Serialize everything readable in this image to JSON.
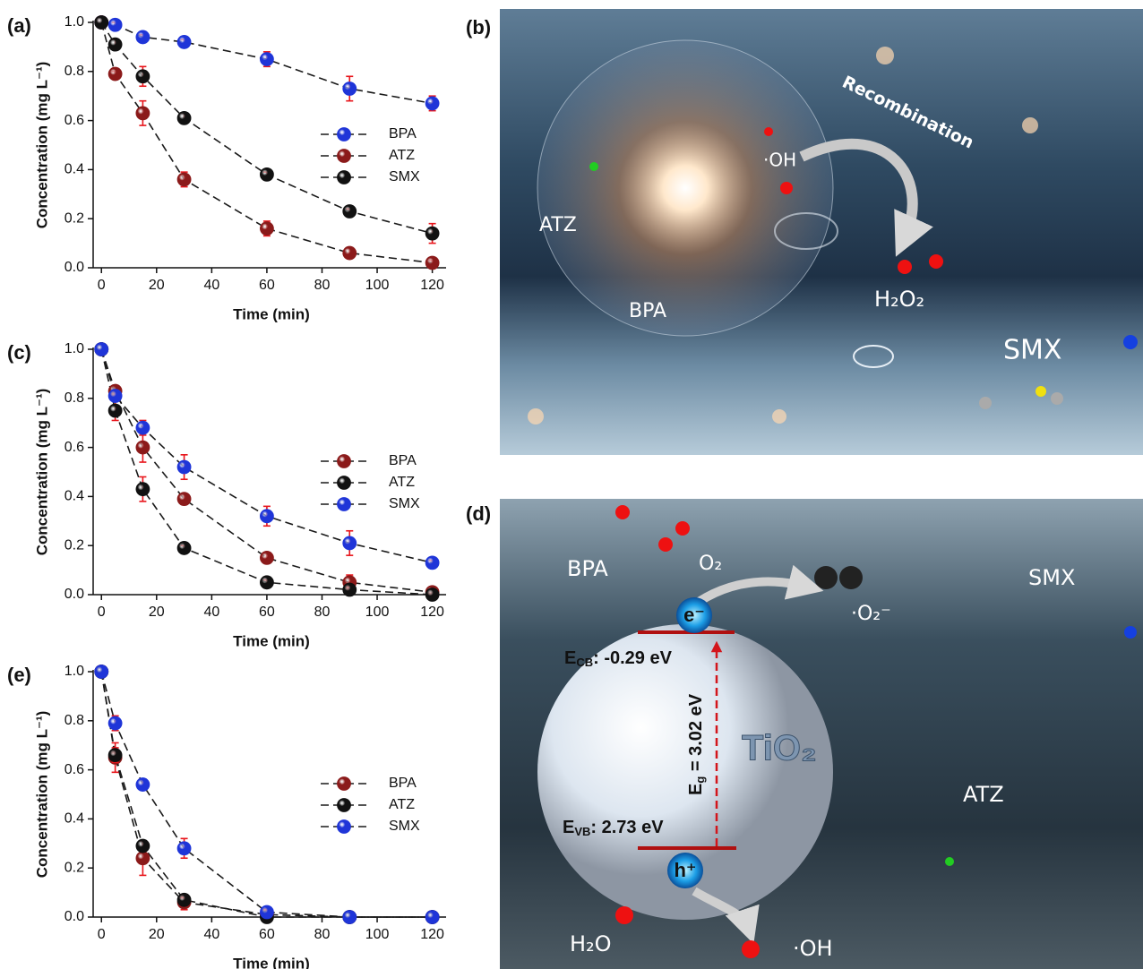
{
  "chart_data": [
    {
      "type": "line",
      "panel_label": "(a)",
      "xlabel": "Time (min)",
      "ylabel": "Concentration (mg L⁻¹)",
      "x": [
        0,
        5,
        15,
        30,
        60,
        90,
        120
      ],
      "xlim": [
        -3,
        125
      ],
      "ylim": [
        0,
        1.0
      ],
      "xticks": [
        0,
        20,
        40,
        60,
        80,
        100,
        120
      ],
      "yticks": [
        {
          "value": 0,
          "label": "0.0"
        },
        {
          "value": 0.2,
          "label": "0.2"
        },
        {
          "value": 0.4,
          "label": "0.4"
        },
        {
          "value": 0.6,
          "label": "0.6"
        },
        {
          "value": 0.8,
          "label": "0.8"
        },
        {
          "value": 1.0,
          "label": "1.0"
        }
      ],
      "legend": "center right",
      "line_color": "#1a1a1a",
      "error_color": "#e8151b",
      "series": [
        {
          "name": "BPA",
          "color": "#1f35d8",
          "values": [
            1.0,
            0.99,
            0.94,
            0.92,
            0.85,
            0.73,
            0.67
          ],
          "errors": [
            0,
            0.01,
            0.01,
            0.01,
            0.03,
            0.05,
            0.03
          ]
        },
        {
          "name": "ATZ",
          "color": "#8b1a1a",
          "values": [
            1.0,
            0.79,
            0.63,
            0.36,
            0.16,
            0.06,
            0.02
          ],
          "errors": [
            0,
            0.01,
            0.05,
            0.03,
            0.03,
            0.02,
            0.01
          ]
        },
        {
          "name": "SMX",
          "color": "#111111",
          "values": [
            1.0,
            0.91,
            0.78,
            0.61,
            0.38,
            0.23,
            0.14
          ],
          "errors": [
            0,
            0.02,
            0.04,
            0.02,
            0.01,
            0.01,
            0.04
          ]
        }
      ]
    },
    {
      "type": "line",
      "panel_label": "(c)",
      "xlabel": "Time (min)",
      "ylabel": "Concentration (mg L⁻¹)",
      "x": [
        0,
        5,
        15,
        30,
        60,
        90,
        120
      ],
      "xlim": [
        -3,
        125
      ],
      "ylim": [
        0,
        1.0
      ],
      "xticks": [
        0,
        20,
        40,
        60,
        80,
        100,
        120
      ],
      "yticks": [
        {
          "value": 0,
          "label": "0.0"
        },
        {
          "value": 0.2,
          "label": "0.2"
        },
        {
          "value": 0.4,
          "label": "0.4"
        },
        {
          "value": 0.6,
          "label": "0.6"
        },
        {
          "value": 0.8,
          "label": "0.8"
        },
        {
          "value": 1.0,
          "label": "1.0"
        }
      ],
      "legend": "center right",
      "line_color": "#1a1a1a",
      "error_color": "#e8151b",
      "series": [
        {
          "name": "BPA",
          "color": "#8b1a1a",
          "values": [
            1.0,
            0.83,
            0.6,
            0.39,
            0.15,
            0.05,
            0.01
          ],
          "errors": [
            0,
            0.02,
            0.06,
            0.02,
            0.02,
            0.03,
            0.01
          ]
        },
        {
          "name": "ATZ",
          "color": "#111111",
          "values": [
            1.0,
            0.75,
            0.43,
            0.19,
            0.05,
            0.02,
            0.0
          ],
          "errors": [
            0,
            0.04,
            0.05,
            0.01,
            0.01,
            0.01,
            0
          ]
        },
        {
          "name": "SMX",
          "color": "#1f35d8",
          "values": [
            1.0,
            0.81,
            0.68,
            0.52,
            0.32,
            0.21,
            0.13
          ],
          "errors": [
            0,
            0.02,
            0.03,
            0.05,
            0.04,
            0.05,
            0.01
          ]
        }
      ]
    },
    {
      "type": "line",
      "panel_label": "(e)",
      "xlabel": "Time (min)",
      "ylabel": "Concentration (mg L⁻¹)",
      "x": [
        0,
        5,
        15,
        30,
        60,
        90,
        120
      ],
      "xlim": [
        -3,
        125
      ],
      "ylim": [
        0,
        1.0
      ],
      "xticks": [
        0,
        20,
        40,
        60,
        80,
        100,
        120
      ],
      "yticks": [
        {
          "value": 0,
          "label": "0.0"
        },
        {
          "value": 0.2,
          "label": "0.2"
        },
        {
          "value": 0.4,
          "label": "0.4"
        },
        {
          "value": 0.6,
          "label": "0.6"
        },
        {
          "value": 0.8,
          "label": "0.8"
        },
        {
          "value": 1.0,
          "label": "1.0"
        }
      ],
      "legend": "center right",
      "line_color": "#1a1a1a",
      "error_color": "#e8151b",
      "series": [
        {
          "name": "BPA",
          "color": "#8b1a1a",
          "values": [
            1.0,
            0.65,
            0.24,
            0.06,
            0.01,
            0.0,
            0.0
          ],
          "errors": [
            0,
            0.06,
            0.07,
            0.03,
            0.01,
            0,
            0
          ]
        },
        {
          "name": "ATZ",
          "color": "#111111",
          "values": [
            1.0,
            0.66,
            0.29,
            0.07,
            0.0,
            0.0,
            0.0
          ],
          "errors": [
            0,
            0.03,
            0.02,
            0.01,
            0,
            0,
            0
          ]
        },
        {
          "name": "SMX",
          "color": "#1f35d8",
          "values": [
            1.0,
            0.79,
            0.54,
            0.28,
            0.02,
            0.0,
            0.0
          ],
          "errors": [
            0,
            0.03,
            0.02,
            0.04,
            0.01,
            0,
            0
          ]
        }
      ]
    }
  ],
  "illustrations": {
    "b": {
      "label": "(b)",
      "atz": "ATZ",
      "oh": "·OH",
      "recombination": "Recombination",
      "h2o2": "H₂O₂",
      "bpa": "BPA",
      "smx": "SMX"
    },
    "d": {
      "label": "(d)",
      "bpa": "BPA",
      "o2": "O₂",
      "smx": "SMX",
      "electron": "e⁻",
      "superoxide": "·O₂⁻",
      "ecb": {
        "symbol": "E",
        "sub": "CB",
        "value": ": -0.29 eV"
      },
      "eg": {
        "symbol": "E",
        "sub": "g",
        "value": " = 3.02 eV"
      },
      "evb": {
        "symbol": "E",
        "sub": "VB",
        "value": ": 2.73 eV"
      },
      "tio2": "TiO₂",
      "atz": "ATZ",
      "hole": "h⁺",
      "h2o": "H₂O",
      "oh": "·OH"
    }
  }
}
